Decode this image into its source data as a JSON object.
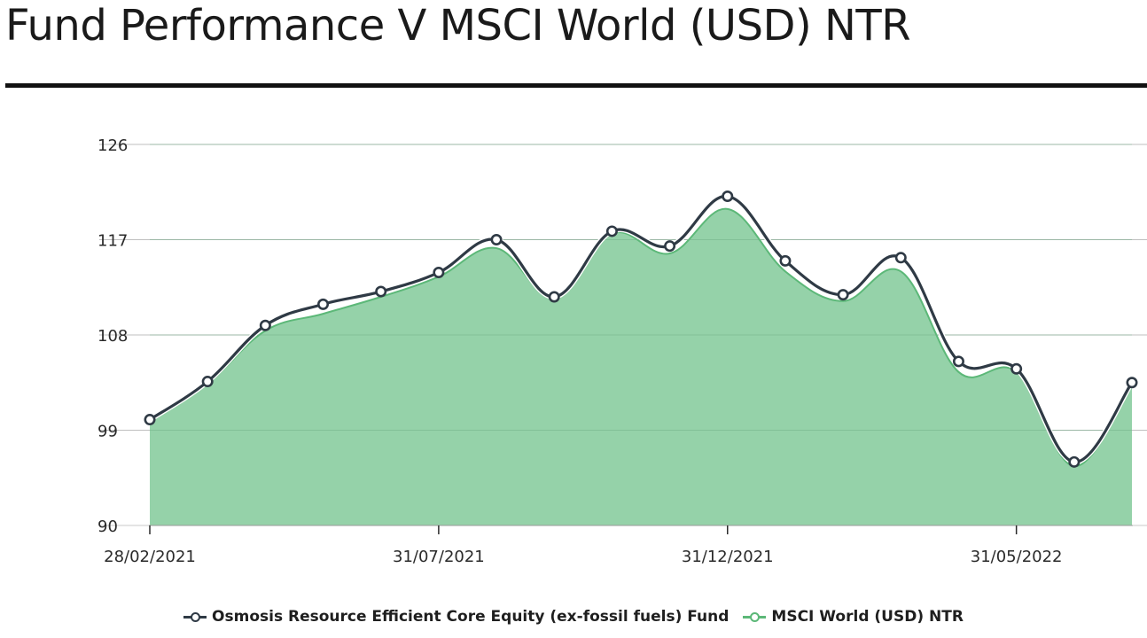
{
  "title": "Fund Performance V MSCI World (USD) NTR",
  "colors": {
    "fund": "#2f3a45",
    "benchmark": "#5cb878",
    "benchmark_fill": "#8fd0a4",
    "grid": "#bfbfbf",
    "rule": "#111111"
  },
  "chart_data": {
    "type": "area",
    "title": "Fund Performance V MSCI World (USD) NTR",
    "xlabel": "",
    "ylabel": "",
    "ylim": [
      90,
      126
    ],
    "yticks": [
      "90",
      "99",
      "108",
      "117",
      "126"
    ],
    "xtick_labels": [
      {
        "index": 0,
        "label": "28/02/2021"
      },
      {
        "index": 5,
        "label": "31/07/2021"
      },
      {
        "index": 10,
        "label": "31/12/2021"
      },
      {
        "index": 15,
        "label": "31/05/2022"
      }
    ],
    "x": [
      "28/02/2021",
      "31/03/2021",
      "30/04/2021",
      "31/05/2021",
      "30/06/2021",
      "31/07/2021",
      "31/08/2021",
      "30/09/2021",
      "31/10/2021",
      "30/11/2021",
      "31/12/2021",
      "31/01/2022",
      "28/02/2022",
      "31/03/2022",
      "30/04/2022",
      "31/05/2022",
      "30/06/2022",
      "31/07/2022"
    ],
    "grid": true,
    "legend_position": "bottom",
    "series": [
      {
        "name": "Osmosis Resource Efficient Core Equity (ex-fossil fuels) Fund",
        "style": "line",
        "values": [
          100.0,
          103.6,
          108.9,
          110.9,
          112.1,
          113.9,
          117.0,
          111.6,
          117.8,
          116.4,
          121.1,
          115.0,
          111.8,
          115.3,
          105.5,
          104.8,
          96.0,
          103.5
        ]
      },
      {
        "name": "MSCI World (USD) NTR",
        "style": "area",
        "values": [
          100.0,
          103.4,
          108.4,
          110.0,
          111.6,
          113.5,
          116.2,
          111.6,
          117.6,
          115.7,
          119.9,
          114.0,
          111.2,
          114.0,
          104.5,
          104.5,
          95.6,
          103.4
        ]
      }
    ]
  },
  "legend": {
    "fund_label": "Osmosis Resource Efficient Core Equity (ex-fossil fuels) Fund",
    "benchmark_label": "MSCI World (USD) NTR"
  }
}
